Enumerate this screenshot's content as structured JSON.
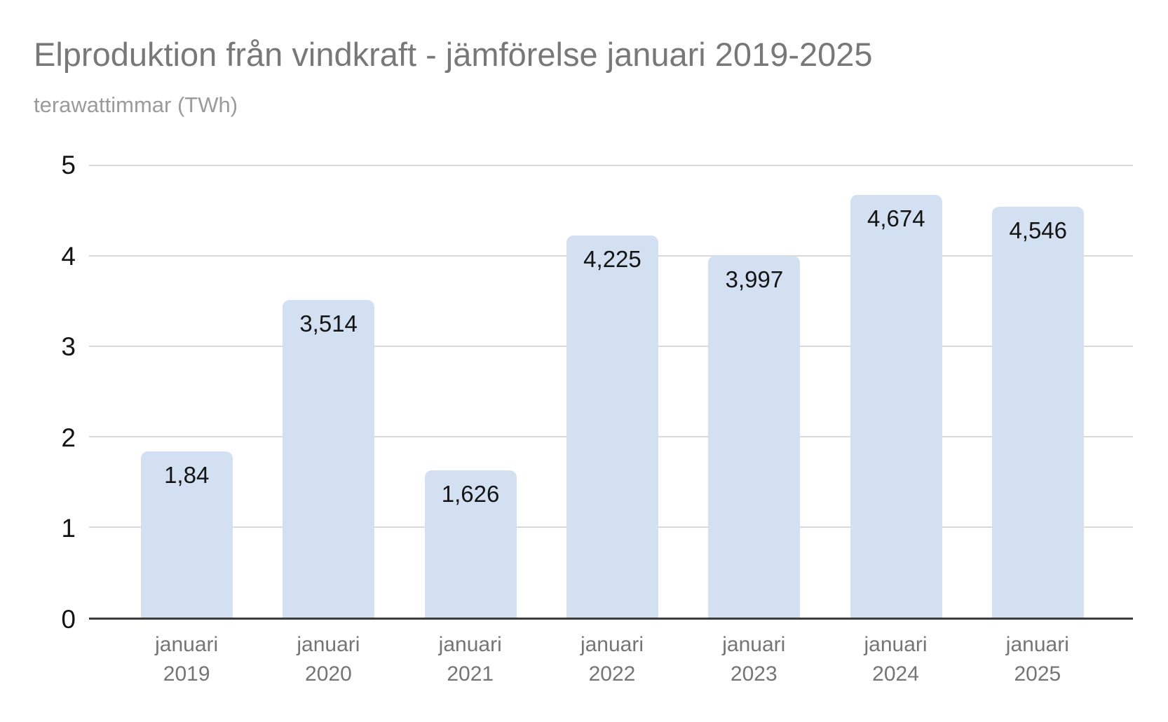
{
  "header": {
    "title": "Elproduktion från vindkraft - jämförelse januari 2019-2025",
    "subtitle": "terawattimmar (TWh)"
  },
  "chart_data": {
    "type": "bar",
    "title": "Elproduktion från vindkraft - jämförelse januari 2019-2025",
    "subtitle": "terawattimmar (TWh)",
    "ylabel": "terawattimmar (TWh)",
    "xlabel": "",
    "categories": [
      "januari 2019",
      "januari 2020",
      "januari 2021",
      "januari 2022",
      "januari 2023",
      "januari 2024",
      "januari 2025"
    ],
    "values": [
      1.84,
      3.514,
      1.626,
      4.225,
      3.997,
      4.674,
      4.546
    ],
    "value_labels": [
      "1,84",
      "3,514",
      "1,626",
      "4,225",
      "3,997",
      "4,674",
      "4,546"
    ],
    "ylim": [
      0,
      5
    ],
    "yticks": [
      0,
      1,
      2,
      3,
      4,
      5
    ],
    "grid": true,
    "legend": false,
    "colors": {
      "bar_fill": "#d3e0f1",
      "gridline": "#d9d9d9",
      "axis_line": "#3c3c3c",
      "title_text": "#787878",
      "subtitle_text": "#9b9b9b",
      "value_label_text": "#141414",
      "ytick_text": "#141414",
      "xtick_text": "#757575",
      "background": "#ffffff"
    }
  }
}
